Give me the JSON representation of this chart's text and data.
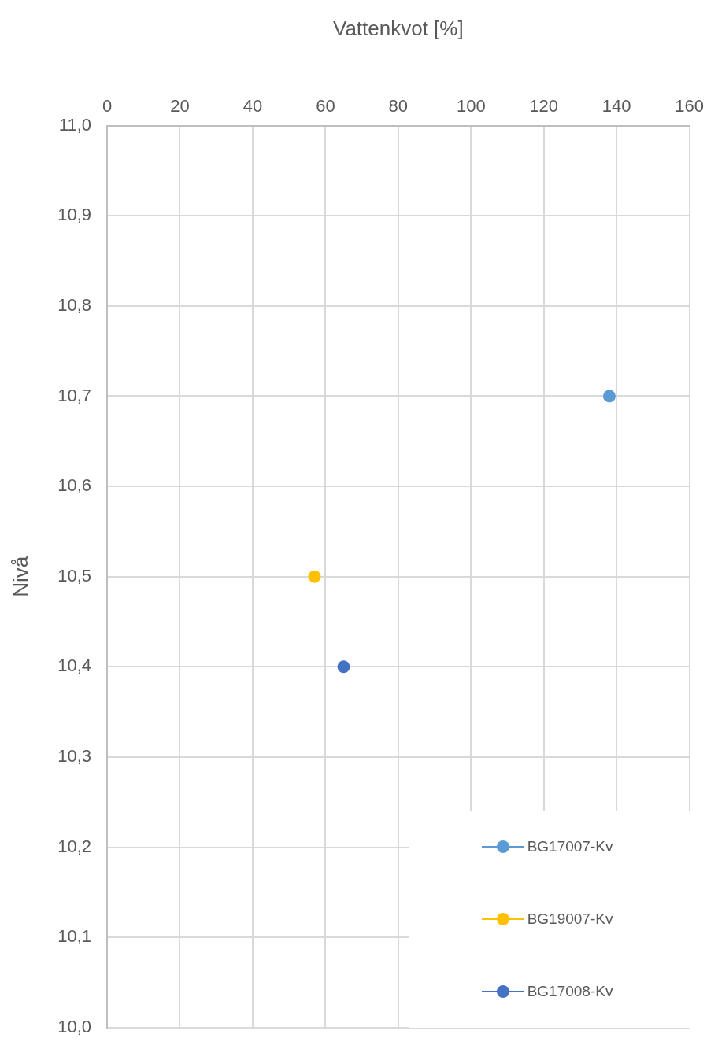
{
  "chart_data": {
    "type": "scatter",
    "xlabel": "Vattenkvot [%]",
    "ylabel": "Nivå",
    "xlim": [
      0,
      160
    ],
    "xticks": [
      0,
      20,
      40,
      60,
      80,
      100,
      120,
      140,
      160
    ],
    "ylim": [
      10.0,
      11.0
    ],
    "yticks": [
      {
        "value": 10.0,
        "label": "10,0"
      },
      {
        "value": 10.1,
        "label": "10,1"
      },
      {
        "value": 10.2,
        "label": "10,2"
      },
      {
        "value": 10.3,
        "label": "10,3"
      },
      {
        "value": 10.4,
        "label": "10,4"
      },
      {
        "value": 10.5,
        "label": "10,5"
      },
      {
        "value": 10.6,
        "label": "10,6"
      },
      {
        "value": 10.7,
        "label": "10,7"
      },
      {
        "value": 10.8,
        "label": "10,8"
      },
      {
        "value": 10.9,
        "label": "10,9"
      },
      {
        "value": 11.0,
        "label": "11,0"
      }
    ],
    "series": [
      {
        "name": "BG17007-Kv",
        "color": "#5b9bd5",
        "x": [
          138
        ],
        "values": [
          10.7
        ]
      },
      {
        "name": "BG19007-Kv",
        "color": "#ffc000",
        "x": [
          57
        ],
        "values": [
          10.5
        ]
      },
      {
        "name": "BG17008-Kv",
        "color": "#4472c4",
        "x": [
          65
        ],
        "values": [
          10.4
        ]
      }
    ],
    "marker": "circle",
    "grid": true,
    "legend": "bottom right"
  }
}
